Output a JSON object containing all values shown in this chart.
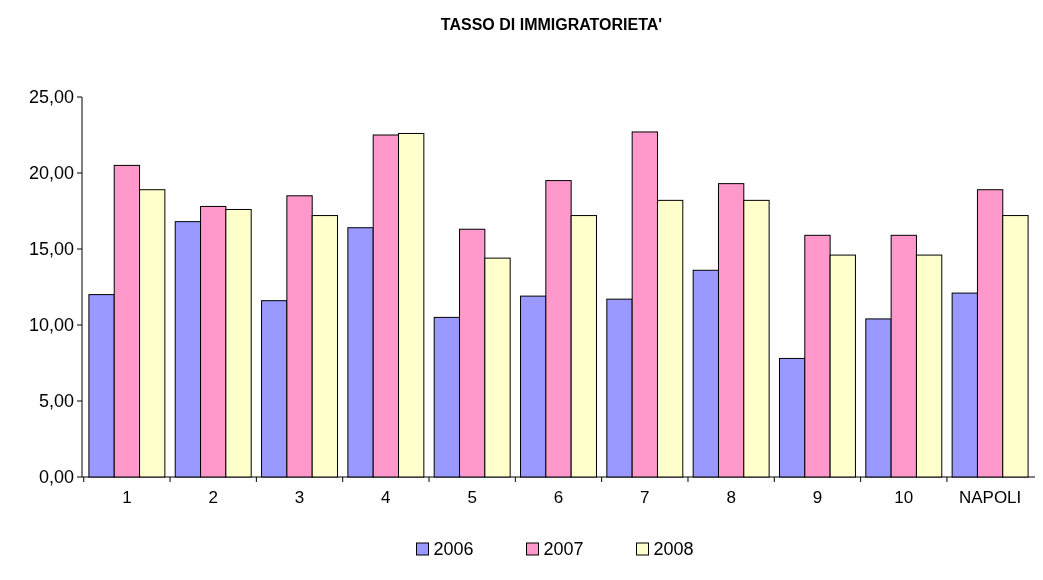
{
  "chart_data": {
    "type": "bar",
    "title": "TASSO DI IMMIGRATORIETA'",
    "categories": [
      "1",
      "2",
      "3",
      "4",
      "5",
      "6",
      "7",
      "8",
      "9",
      "10",
      "NAPOLI"
    ],
    "series": [
      {
        "name": "2006",
        "color": "#9999ff",
        "values": [
          12.0,
          16.8,
          11.6,
          16.4,
          10.5,
          11.9,
          11.7,
          13.6,
          7.8,
          10.4,
          12.1
        ]
      },
      {
        "name": "2007",
        "color": "#ff99cc",
        "values": [
          20.5,
          17.8,
          18.5,
          22.5,
          16.3,
          19.5,
          22.7,
          19.3,
          15.9,
          15.9,
          18.9
        ]
      },
      {
        "name": "2008",
        "color": "#ffffcc",
        "values": [
          18.9,
          17.6,
          17.2,
          22.6,
          14.4,
          17.2,
          18.2,
          18.2,
          14.6,
          14.6,
          17.2
        ]
      }
    ],
    "ylim": [
      0,
      25
    ],
    "yticks": [
      {
        "value": 0,
        "label": "0,00"
      },
      {
        "value": 5,
        "label": "5,00"
      },
      {
        "value": 10,
        "label": "10,00"
      },
      {
        "value": 15,
        "label": "15,00"
      },
      {
        "value": 20,
        "label": "20,00"
      },
      {
        "value": 25,
        "label": "25,00"
      }
    ],
    "grid": false,
    "legend": "bottom"
  }
}
